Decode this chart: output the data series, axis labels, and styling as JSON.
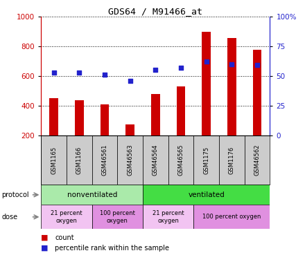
{
  "title": "GDS64 / M91466_at",
  "samples": [
    "GSM1165",
    "GSM1166",
    "GSM46561",
    "GSM46563",
    "GSM46564",
    "GSM46565",
    "GSM1175",
    "GSM1176",
    "GSM46562"
  ],
  "counts": [
    450,
    435,
    410,
    275,
    480,
    530,
    895,
    855,
    775
  ],
  "percentiles": [
    53,
    53,
    51,
    46,
    55,
    57,
    62,
    60,
    59
  ],
  "ylim_left": [
    200,
    1000
  ],
  "ylim_right": [
    0,
    100
  ],
  "yticks_left": [
    200,
    400,
    600,
    800,
    1000
  ],
  "yticks_right": [
    0,
    25,
    50,
    75,
    100
  ],
  "bar_color": "#cc0000",
  "dot_color": "#2222cc",
  "color_light_green": "#aaeaaa",
  "color_green": "#44dd44",
  "color_light_purple": "#eeaaee",
  "color_purple": "#dd88dd",
  "color_gray_bg": "#cccccc",
  "label_count": "count",
  "label_percentile": "percentile rank within the sample"
}
